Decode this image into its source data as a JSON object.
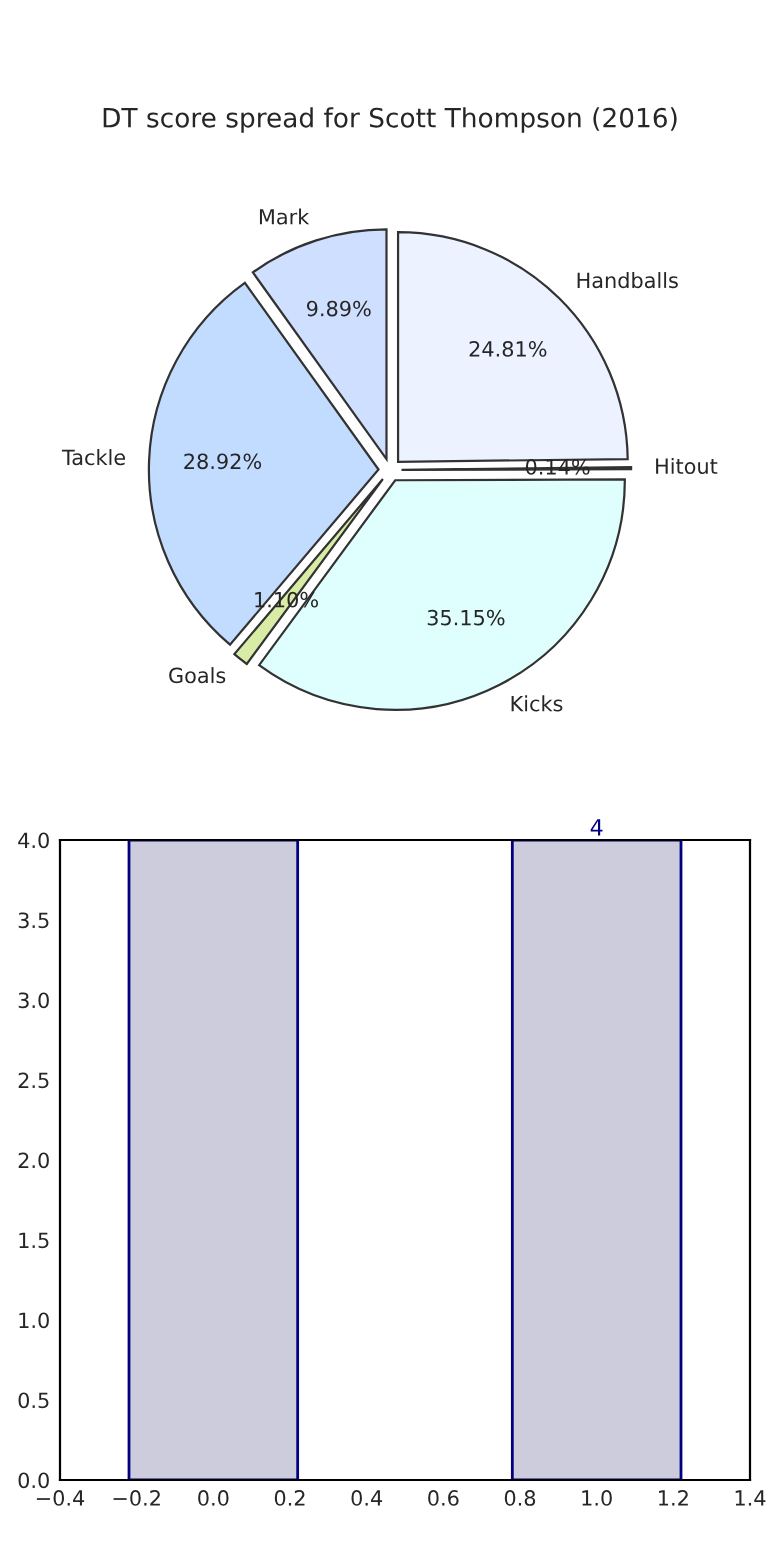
{
  "chart_data": [
    {
      "type": "pie",
      "title": "DT score spread for Scott Thompson (2016)",
      "categories": [
        "Handballs",
        "Hitout",
        "Kicks",
        "Goals",
        "Tackle",
        "Mark"
      ],
      "values": [
        24.81,
        0.14,
        35.15,
        1.1,
        28.92,
        9.89
      ],
      "value_labels": [
        "24.81%",
        "0.14%",
        "35.15%",
        "1.10%",
        "28.92%",
        "9.89%"
      ],
      "colors": [
        "#e8f0ff",
        "#e0e8f0",
        "#d8ffff",
        "#d0e890",
        "#b4d4ff",
        "#c4d8ff"
      ]
    },
    {
      "type": "bar",
      "x": [
        0,
        1
      ],
      "values": [
        4,
        4
      ],
      "value_labels": [
        null,
        "4"
      ],
      "color": "#ccccdd",
      "xlim": [
        -0.4,
        1.4
      ],
      "ylim": [
        0,
        4.0
      ],
      "xticks": [
        {
          "value": -0.4,
          "label": "−0.4"
        },
        {
          "value": -0.2,
          "label": "−0.2"
        },
        {
          "value": 0,
          "label": "0.0"
        },
        {
          "value": 0.2,
          "label": "0.2"
        },
        {
          "value": 0.4,
          "label": "0.4"
        },
        {
          "value": 0.6,
          "label": "0.6"
        },
        {
          "value": 0.8,
          "label": "0.8"
        },
        {
          "value": 1.0,
          "label": "1.0"
        },
        {
          "value": 1.2,
          "label": "1.2"
        },
        {
          "value": 1.4,
          "label": "1.4"
        }
      ],
      "yticks": [
        {
          "value": 0,
          "label": "0.0"
        },
        {
          "value": 0.5,
          "label": "0.5"
        },
        {
          "value": 1.0,
          "label": "1.0"
        },
        {
          "value": 1.5,
          "label": "1.5"
        },
        {
          "value": 2.0,
          "label": "2.0"
        },
        {
          "value": 2.5,
          "label": "2.5"
        },
        {
          "value": 3.0,
          "label": "3.0"
        },
        {
          "value": 3.5,
          "label": "3.5"
        },
        {
          "value": 4.0,
          "label": "4.0"
        }
      ]
    }
  ]
}
